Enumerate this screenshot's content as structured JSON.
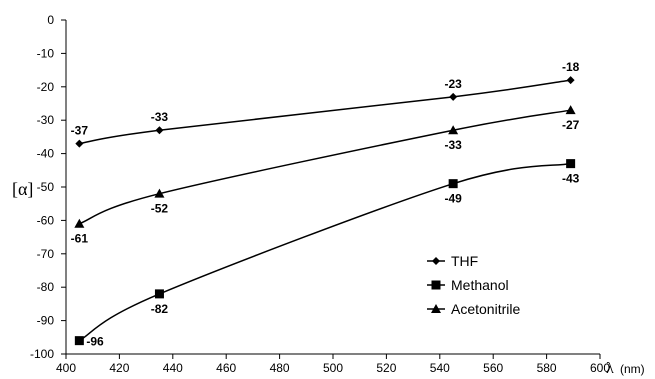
{
  "chart_data": {
    "type": "line",
    "x": [
      405,
      435,
      545,
      589
    ],
    "series": [
      {
        "name": "THF",
        "marker": "diamond",
        "values": [
          -37,
          -33,
          -23,
          -18
        ],
        "labels": [
          "-37",
          "-33",
          "-23",
          "-18"
        ],
        "label_pos": [
          "above",
          "above",
          "above",
          "above"
        ]
      },
      {
        "name": "Methanol",
        "marker": "square",
        "values": [
          -96,
          -82,
          -49,
          -43
        ],
        "labels": [
          "-96",
          "-82",
          "-49",
          "-43"
        ],
        "label_pos": [
          "right",
          "below",
          "below",
          "below"
        ]
      },
      {
        "name": "Acetonitrile",
        "marker": "triangle",
        "values": [
          -61,
          -52,
          -33,
          -27
        ],
        "labels": [
          "-61",
          "-52",
          "-33",
          "-27"
        ],
        "label_pos": [
          "below",
          "below",
          "below",
          "below"
        ]
      }
    ],
    "xlim": [
      400,
      600
    ],
    "ylim": [
      -100,
      0
    ],
    "xticks": [
      400,
      420,
      440,
      460,
      480,
      500,
      520,
      540,
      560,
      580,
      600
    ],
    "yticks": [
      0,
      -10,
      -20,
      -30,
      -40,
      -50,
      -60,
      -70,
      -80,
      -90,
      -100
    ],
    "ylabel": "[α]",
    "xlabel_symbol": "λ",
    "xlabel_unit": "(nm)",
    "grid": false,
    "legend_position": "bottom-right",
    "line_color": "#000000"
  }
}
